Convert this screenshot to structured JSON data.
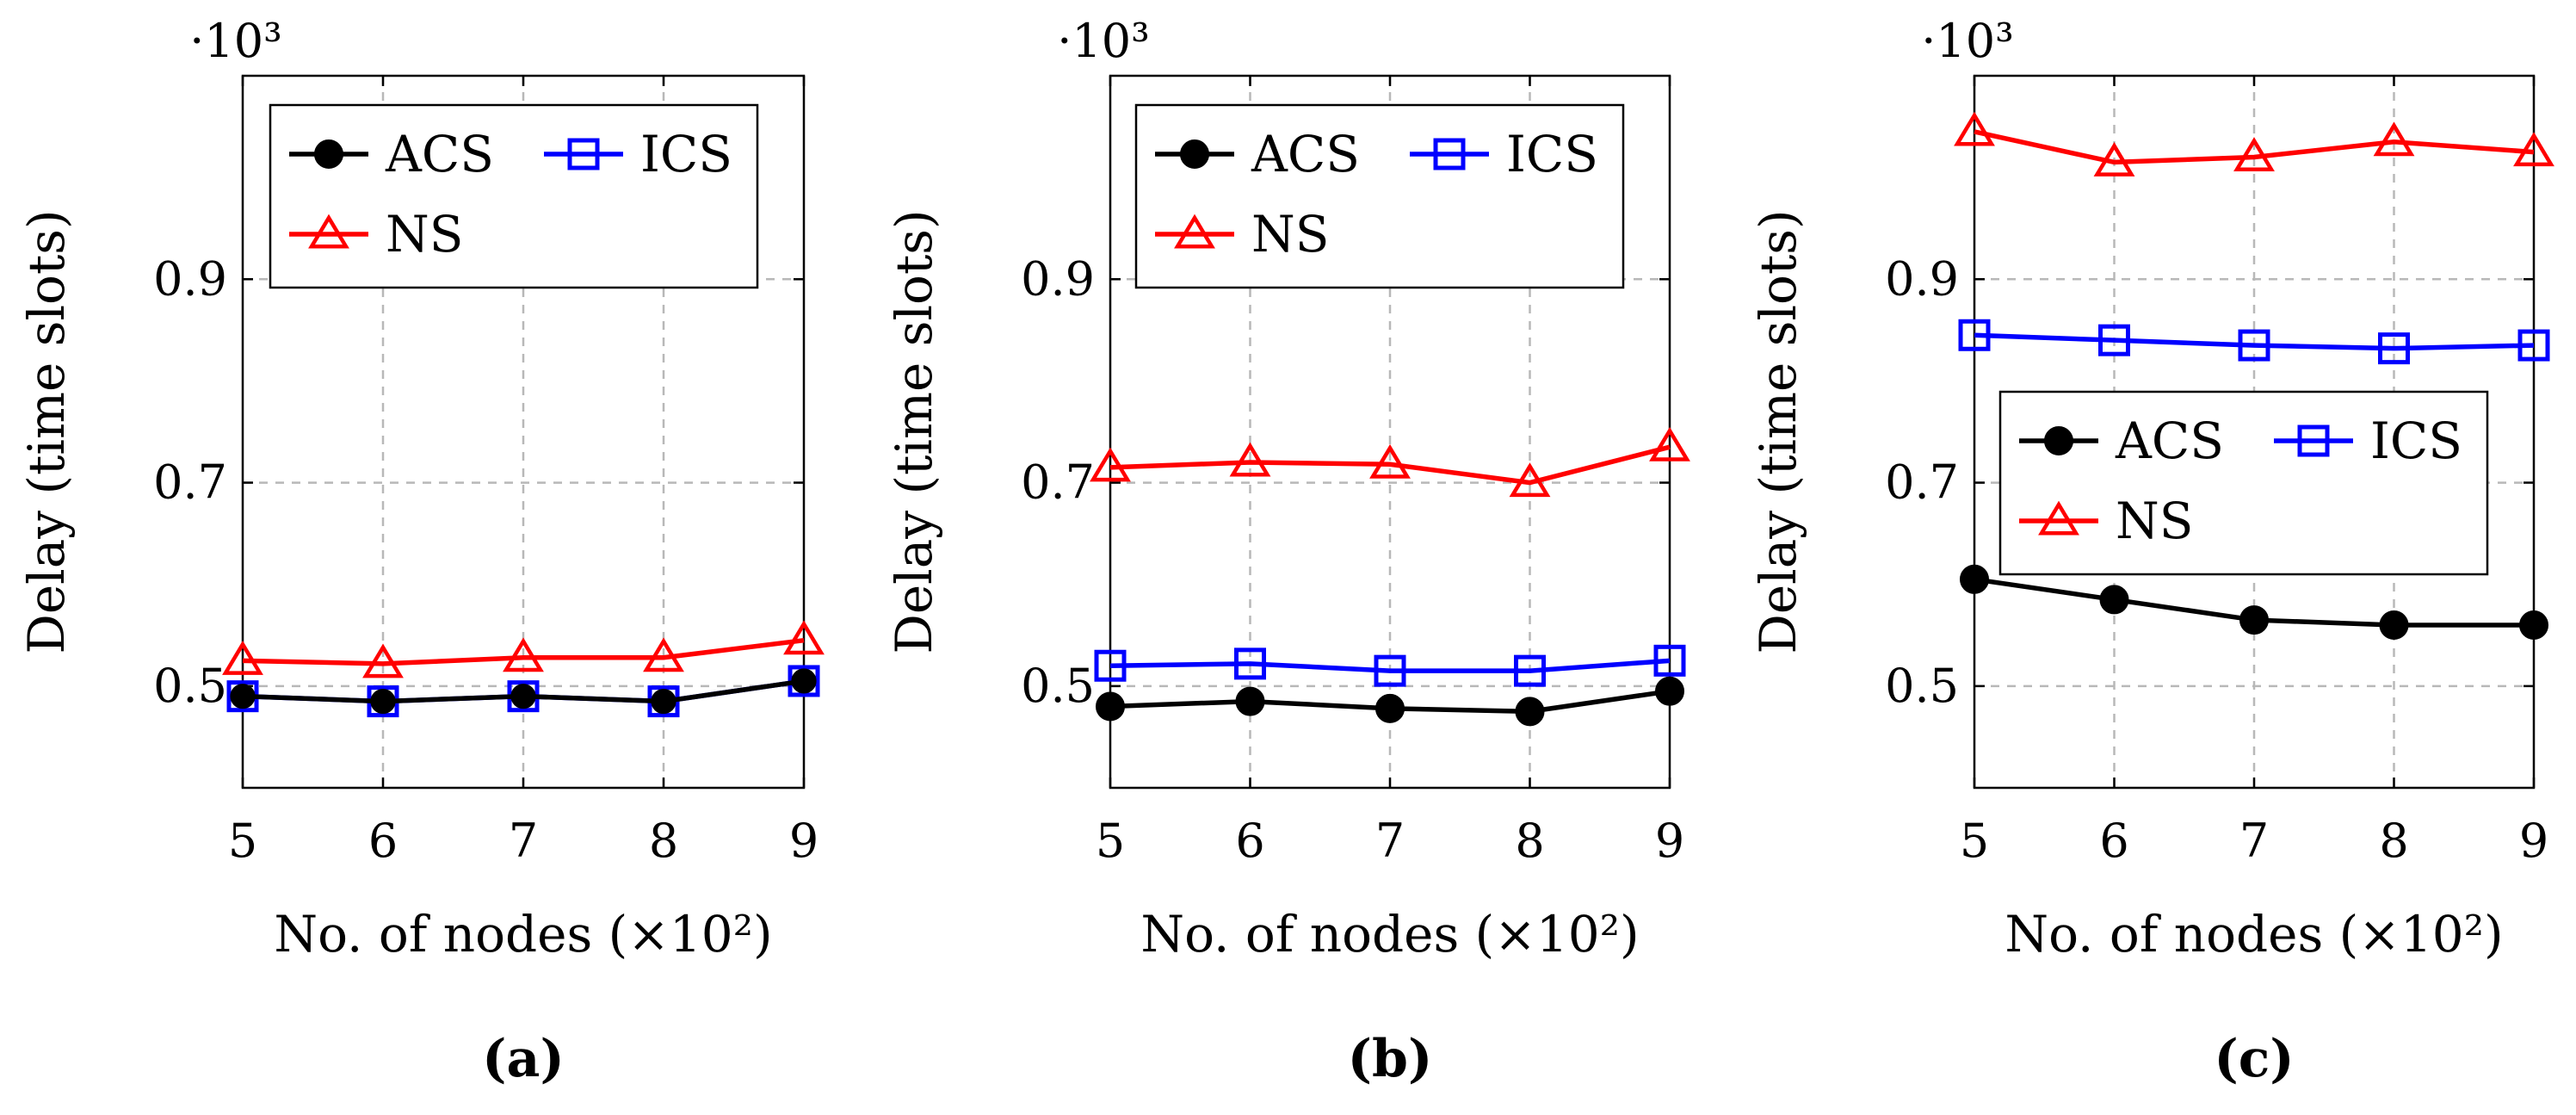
{
  "chart_data": [
    {
      "type": "line",
      "panel_label": "(a)",
      "multiplier_label": "·10³",
      "xlabel": "No. of nodes (×10²)",
      "ylabel": "Delay (time slots)",
      "x": [
        5,
        6,
        7,
        8,
        9
      ],
      "xlim": [
        5,
        9
      ],
      "ylim": [
        0.4,
        1.1
      ],
      "yticks": [
        0.5,
        0.7,
        0.9
      ],
      "ytick_labels": [
        "0.5",
        "0.7",
        "0.9"
      ],
      "xtick_labels": [
        "5",
        "6",
        "7",
        "8",
        "9"
      ],
      "grid": true,
      "legend_position": "top-left",
      "series": [
        {
          "name": "ACS",
          "color": "#000000",
          "marker": "circle",
          "values": [
            0.49,
            0.485,
            0.49,
            0.485,
            0.505
          ]
        },
        {
          "name": "ICS",
          "color": "#0000ff",
          "marker": "square",
          "values": [
            0.49,
            0.485,
            0.49,
            0.485,
            0.505
          ]
        },
        {
          "name": "NS",
          "color": "#ff0000",
          "marker": "triangle",
          "values": [
            0.525,
            0.522,
            0.528,
            0.528,
            0.545
          ]
        }
      ]
    },
    {
      "type": "line",
      "panel_label": "(b)",
      "multiplier_label": "·10³",
      "xlabel": "No. of nodes (×10²)",
      "ylabel": "Delay (time slots)",
      "x": [
        5,
        6,
        7,
        8,
        9
      ],
      "xlim": [
        5,
        9
      ],
      "ylim": [
        0.4,
        1.1
      ],
      "yticks": [
        0.5,
        0.7,
        0.9
      ],
      "ytick_labels": [
        "0.5",
        "0.7",
        "0.9"
      ],
      "xtick_labels": [
        "5",
        "6",
        "7",
        "8",
        "9"
      ],
      "grid": true,
      "legend_position": "top-left",
      "series": [
        {
          "name": "ACS",
          "color": "#000000",
          "marker": "circle",
          "values": [
            0.48,
            0.485,
            0.478,
            0.475,
            0.495
          ]
        },
        {
          "name": "ICS",
          "color": "#0000ff",
          "marker": "square",
          "values": [
            0.52,
            0.522,
            0.515,
            0.515,
            0.525
          ]
        },
        {
          "name": "NS",
          "color": "#ff0000",
          "marker": "triangle",
          "values": [
            0.715,
            0.72,
            0.718,
            0.7,
            0.735
          ]
        }
      ]
    },
    {
      "type": "line",
      "panel_label": "(c)",
      "multiplier_label": "·10³",
      "xlabel": "No. of nodes (×10²)",
      "ylabel": "Delay (time slots)",
      "x": [
        5,
        6,
        7,
        8,
        9
      ],
      "xlim": [
        5,
        9
      ],
      "ylim": [
        0.4,
        1.1
      ],
      "yticks": [
        0.5,
        0.7,
        0.9
      ],
      "ytick_labels": [
        "0.5",
        "0.7",
        "0.9"
      ],
      "xtick_labels": [
        "5",
        "6",
        "7",
        "8",
        "9"
      ],
      "grid": true,
      "legend_position": "middle-left",
      "series": [
        {
          "name": "ACS",
          "color": "#000000",
          "marker": "circle",
          "values": [
            0.605,
            0.585,
            0.565,
            0.56,
            0.56
          ]
        },
        {
          "name": "ICS",
          "color": "#0000ff",
          "marker": "square",
          "values": [
            0.845,
            0.84,
            0.835,
            0.832,
            0.835
          ]
        },
        {
          "name": "NS",
          "color": "#ff0000",
          "marker": "triangle",
          "values": [
            1.045,
            1.015,
            1.02,
            1.035,
            1.025
          ]
        }
      ]
    }
  ]
}
